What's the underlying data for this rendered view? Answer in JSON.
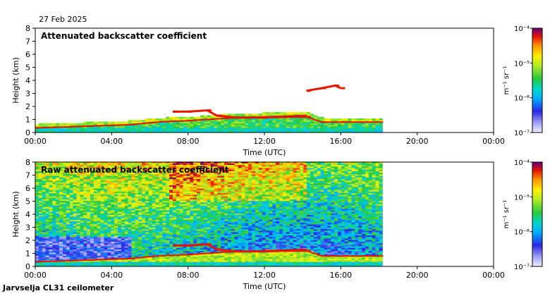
{
  "date": "27 Feb 2025",
  "footer": "Jarvselja CL31 ceilometer",
  "chart_data": [
    {
      "type": "heatmap",
      "title": "Attenuated backscatter coefficient",
      "xlabel": "Time (UTC)",
      "ylabel": "Height (km)",
      "x_ticks": [
        "00:00",
        "04:00",
        "08:00",
        "12:00",
        "16:00",
        "20:00",
        "00:00"
      ],
      "y_ticks": [
        "0",
        "1",
        "2",
        "3",
        "4",
        "5",
        "6",
        "7",
        "8"
      ],
      "xlim_hours": [
        0,
        24
      ],
      "ylim_km": [
        0,
        8
      ],
      "data_end_hours": 18.0,
      "colorbar": {
        "label": "m⁻¹ sr⁻¹",
        "ticks": [
          "10⁻⁷",
          "10⁻⁶",
          "10⁻⁵",
          "10⁻⁴"
        ],
        "range_log10": [
          -7,
          -4
        ],
        "scale": "log"
      },
      "features": {
        "boundary_layer_top_km": [
          [
            0,
            0.35
          ],
          [
            1,
            0.4
          ],
          [
            2,
            0.45
          ],
          [
            3,
            0.5
          ],
          [
            4,
            0.55
          ],
          [
            5,
            0.6
          ],
          [
            6,
            0.75
          ],
          [
            7,
            0.85
          ],
          [
            8,
            0.9
          ],
          [
            9,
            1.0
          ],
          [
            10,
            1.1
          ],
          [
            11,
            1.15
          ],
          [
            12,
            1.2
          ],
          [
            13,
            1.25
          ],
          [
            14,
            1.3
          ],
          [
            15,
            0.8
          ],
          [
            16,
            0.8
          ],
          [
            17,
            0.8
          ],
          [
            18,
            0.8
          ]
        ],
        "cloud_layer_km": [
          [
            7.2,
            1.6
          ],
          [
            8,
            1.6
          ],
          [
            9,
            1.7
          ],
          [
            9.5,
            1.3
          ],
          [
            10.5,
            1.15
          ],
          [
            12,
            1.15
          ],
          [
            13,
            1.2
          ],
          [
            14.2,
            1.2
          ]
        ],
        "high_cloud_km": [
          [
            14.2,
            3.2
          ],
          [
            15,
            3.4
          ],
          [
            15.7,
            3.6
          ],
          [
            16,
            3.4
          ]
        ]
      }
    },
    {
      "type": "heatmap",
      "title": "Raw attenuated backscatter coefficient",
      "xlabel": "Time (UTC)",
      "ylabel": "Height (km)",
      "x_ticks": [
        "00:00",
        "04:00",
        "08:00",
        "12:00",
        "16:00",
        "20:00",
        "00:00"
      ],
      "y_ticks": [
        "0",
        "1",
        "2",
        "3",
        "4",
        "5",
        "6",
        "7",
        "8"
      ],
      "xlim_hours": [
        0,
        24
      ],
      "ylim_km": [
        0,
        8
      ],
      "data_end_hours": 18.0,
      "colorbar": {
        "label": "m⁻¹ sr⁻¹",
        "ticks": [
          "10⁻⁷",
          "10⁻⁶",
          "10⁻⁵",
          "10⁻⁴"
        ],
        "range_log10": [
          -7,
          -4
        ],
        "scale": "log"
      }
    }
  ]
}
